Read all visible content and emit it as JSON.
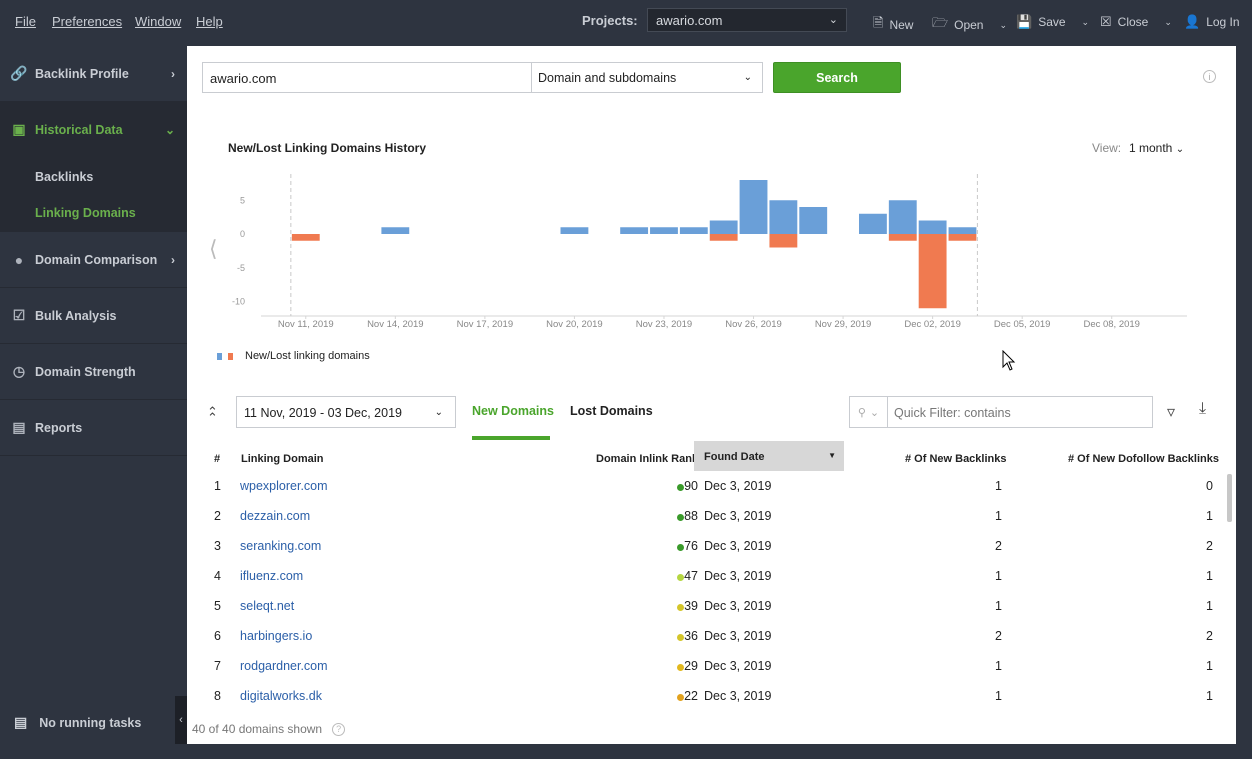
{
  "menu": {
    "file": "File",
    "preferences": "Preferences",
    "window": "Window",
    "help": "Help"
  },
  "topbar": {
    "projects_label": "Projects:",
    "project_value": "awario.com",
    "new_label": "New",
    "open_label": "Open",
    "save_label": "Save",
    "close_label": "Close",
    "login_label": "Log In"
  },
  "sidebar": {
    "items": [
      {
        "label": "Backlink Profile",
        "icon": "link-icon"
      },
      {
        "label": "Historical Data",
        "icon": "calendar-icon"
      },
      {
        "label": "Domain Comparison",
        "icon": "bubbles-icon"
      },
      {
        "label": "Bulk Analysis",
        "icon": "checklist-icon"
      },
      {
        "label": "Domain Strength",
        "icon": "gauge-icon"
      },
      {
        "label": "Reports",
        "icon": "report-icon"
      }
    ],
    "sub_items": [
      "Backlinks",
      "Linking Domains"
    ],
    "tasks_label": "No running tasks"
  },
  "search": {
    "query": "awario.com",
    "scope": "Domain and subdomains",
    "button": "Search"
  },
  "chart_data": {
    "type": "bar",
    "title": "New/Lost Linking Domains History",
    "view_label": "View:",
    "view_value": "1 month",
    "xlabel": "",
    "ylabel": "",
    "ylim": [
      -11,
      8
    ],
    "yticks": [
      5,
      0,
      -5,
      -10
    ],
    "xticks": [
      "Nov 11, 2019",
      "Nov 14, 2019",
      "Nov 17, 2019",
      "Nov 20, 2019",
      "Nov 23, 2019",
      "Nov 26, 2019",
      "Nov 29, 2019",
      "Dec 02, 2019",
      "Dec 05, 2019",
      "Dec 08, 2019"
    ],
    "x_start": "Nov 10, 2019",
    "x_end": "Dec 10, 2019",
    "range_start": "Nov 11, 2019",
    "range_end": "Dec 03, 2019",
    "legend": "New/Lost linking domains",
    "colors": {
      "new": "#6a9fd8",
      "lost": "#f07a50"
    },
    "series": [
      {
        "key": "new",
        "values": [
          {
            "date": "Nov 14, 2019",
            "value": 1
          },
          {
            "date": "Nov 20, 2019",
            "value": 1
          },
          {
            "date": "Nov 22, 2019",
            "value": 1
          },
          {
            "date": "Nov 23, 2019",
            "value": 1
          },
          {
            "date": "Nov 24, 2019",
            "value": 1
          },
          {
            "date": "Nov 25, 2019",
            "value": 2
          },
          {
            "date": "Nov 26, 2019",
            "value": 8
          },
          {
            "date": "Nov 27, 2019",
            "value": 5
          },
          {
            "date": "Nov 28, 2019",
            "value": 4
          },
          {
            "date": "Nov 30, 2019",
            "value": 3
          },
          {
            "date": "Dec 01, 2019",
            "value": 5
          },
          {
            "date": "Dec 02, 2019",
            "value": 2
          },
          {
            "date": "Dec 03, 2019",
            "value": 1
          }
        ]
      },
      {
        "key": "lost",
        "values": [
          {
            "date": "Nov 11, 2019",
            "value": -1
          },
          {
            "date": "Nov 25, 2019",
            "value": -1
          },
          {
            "date": "Nov 27, 2019",
            "value": -2
          },
          {
            "date": "Dec 01, 2019",
            "value": -1
          },
          {
            "date": "Dec 02, 2019",
            "value": -11
          },
          {
            "date": "Dec 03, 2019",
            "value": -1
          }
        ]
      }
    ]
  },
  "table_controls": {
    "date_range": "11 Nov, 2019 - 03 Dec, 2019",
    "tab_new": "New Domains",
    "tab_lost": "Lost Domains",
    "filter_placeholder": "Quick Filter: contains"
  },
  "table": {
    "headers": {
      "num": "#",
      "domain": "Linking Domain",
      "rank": "Domain Inlink Rank",
      "found": "Found Date",
      "new_backlinks": "# Of New Backlinks",
      "dofollow": "# Of New Dofollow Backlinks"
    },
    "rows": [
      {
        "num": "1",
        "domain": "wpexplorer.com",
        "rank": "90",
        "rank_color": "#3a9a2a",
        "date": "Dec 3, 2019",
        "new_backlinks": "1",
        "dofollow": "0"
      },
      {
        "num": "2",
        "domain": "dezzain.com",
        "rank": "88",
        "rank_color": "#3a9a2a",
        "date": "Dec 3, 2019",
        "new_backlinks": "1",
        "dofollow": "1"
      },
      {
        "num": "3",
        "domain": "seranking.com",
        "rank": "76",
        "rank_color": "#3a9a2a",
        "date": "Dec 3, 2019",
        "new_backlinks": "2",
        "dofollow": "2"
      },
      {
        "num": "4",
        "domain": "ifluenz.com",
        "rank": "47",
        "rank_color": "#b5d641",
        "date": "Dec 3, 2019",
        "new_backlinks": "1",
        "dofollow": "1"
      },
      {
        "num": "5",
        "domain": "seleqt.net",
        "rank": "39",
        "rank_color": "#d4c52a",
        "date": "Dec 3, 2019",
        "new_backlinks": "1",
        "dofollow": "1"
      },
      {
        "num": "6",
        "domain": "harbingers.io",
        "rank": "36",
        "rank_color": "#d4c52a",
        "date": "Dec 3, 2019",
        "new_backlinks": "2",
        "dofollow": "2"
      },
      {
        "num": "7",
        "domain": "rodgardner.com",
        "rank": "29",
        "rank_color": "#e2b81e",
        "date": "Dec 3, 2019",
        "new_backlinks": "1",
        "dofollow": "1"
      },
      {
        "num": "8",
        "domain": "digitalworks.dk",
        "rank": "22",
        "rank_color": "#e2a21e",
        "date": "Dec 3, 2019",
        "new_backlinks": "1",
        "dofollow": "1"
      }
    ]
  },
  "status": {
    "shown": "40 of 40 domains shown"
  }
}
